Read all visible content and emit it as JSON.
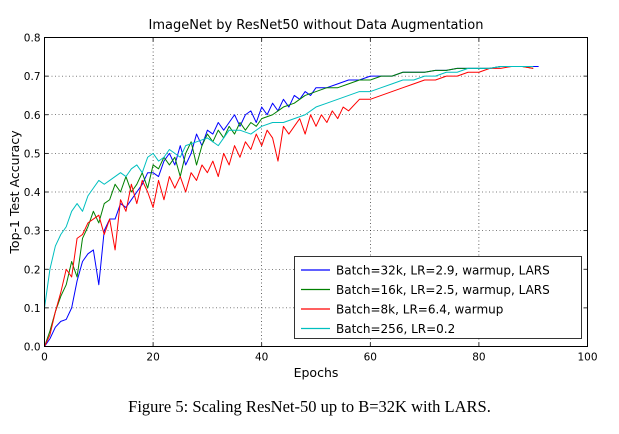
{
  "caption": "Figure 5: Scaling ResNet-50 up to B=32K with LARS.",
  "chart_data": {
    "type": "line",
    "title": "ImageNet by ResNet50 without Data Augmentation",
    "xlabel": "Epochs",
    "ylabel": "Top-1 Test Accuracy",
    "xlim": [
      0,
      100
    ],
    "ylim": [
      0.0,
      0.8
    ],
    "x_ticks": [
      "0",
      "20",
      "40",
      "60",
      "80",
      "100"
    ],
    "y_ticks": [
      "0.0",
      "0.1",
      "0.2",
      "0.3",
      "0.4",
      "0.5",
      "0.6",
      "0.7",
      "0.8"
    ],
    "grid": true,
    "legend_position": "lower-right",
    "series": [
      {
        "name": "Batch=32k, LR=2.9, warmup, LARS",
        "color": "#0000ff",
        "x": [
          0,
          1,
          2,
          3,
          4,
          5,
          6,
          7,
          8,
          9,
          10,
          11,
          12,
          13,
          14,
          15,
          16,
          17,
          18,
          19,
          20,
          21,
          22,
          23,
          24,
          25,
          26,
          27,
          28,
          29,
          30,
          31,
          32,
          33,
          34,
          35,
          36,
          37,
          38,
          39,
          40,
          41,
          42,
          43,
          44,
          45,
          46,
          47,
          48,
          49,
          50,
          52,
          54,
          56,
          58,
          60,
          62,
          64,
          66,
          68,
          70,
          72,
          74,
          76,
          78,
          80,
          82,
          84,
          86,
          88,
          90,
          91
        ],
        "y": [
          0.0,
          0.02,
          0.05,
          0.065,
          0.07,
          0.1,
          0.17,
          0.22,
          0.24,
          0.25,
          0.16,
          0.3,
          0.33,
          0.33,
          0.37,
          0.36,
          0.38,
          0.4,
          0.42,
          0.45,
          0.45,
          0.44,
          0.48,
          0.5,
          0.47,
          0.52,
          0.47,
          0.5,
          0.55,
          0.52,
          0.56,
          0.55,
          0.58,
          0.56,
          0.58,
          0.6,
          0.57,
          0.6,
          0.61,
          0.58,
          0.62,
          0.6,
          0.63,
          0.61,
          0.64,
          0.62,
          0.65,
          0.64,
          0.66,
          0.65,
          0.67,
          0.67,
          0.68,
          0.69,
          0.69,
          0.7,
          0.7,
          0.7,
          0.71,
          0.71,
          0.71,
          0.715,
          0.715,
          0.72,
          0.72,
          0.72,
          0.72,
          0.725,
          0.725,
          0.725,
          0.725,
          0.725
        ]
      },
      {
        "name": "Batch=16k, LR=2.5, warmup, LARS",
        "color": "#008000",
        "x": [
          0,
          1,
          2,
          3,
          4,
          5,
          6,
          7,
          8,
          9,
          10,
          11,
          12,
          13,
          14,
          15,
          16,
          17,
          18,
          19,
          20,
          21,
          22,
          23,
          24,
          25,
          26,
          27,
          28,
          29,
          30,
          31,
          32,
          33,
          34,
          35,
          36,
          37,
          38,
          39,
          40,
          42,
          44,
          46,
          48,
          50,
          52,
          54,
          56,
          58,
          60,
          62,
          64,
          66,
          68,
          70,
          72,
          74,
          76,
          78,
          80,
          82,
          84,
          86,
          88,
          90
        ],
        "y": [
          0.0,
          0.04,
          0.09,
          0.13,
          0.16,
          0.22,
          0.18,
          0.28,
          0.31,
          0.35,
          0.32,
          0.37,
          0.38,
          0.42,
          0.4,
          0.44,
          0.4,
          0.42,
          0.45,
          0.41,
          0.47,
          0.46,
          0.49,
          0.47,
          0.49,
          0.44,
          0.5,
          0.53,
          0.47,
          0.52,
          0.55,
          0.53,
          0.56,
          0.54,
          0.57,
          0.55,
          0.58,
          0.56,
          0.58,
          0.57,
          0.59,
          0.6,
          0.62,
          0.63,
          0.65,
          0.66,
          0.67,
          0.67,
          0.68,
          0.69,
          0.69,
          0.7,
          0.7,
          0.71,
          0.71,
          0.71,
          0.715,
          0.715,
          0.72,
          0.72,
          0.72,
          0.72,
          0.725,
          0.725,
          0.725,
          0.72
        ]
      },
      {
        "name": "Batch=8k, LR=6.4, warmup",
        "color": "#ff0000",
        "x": [
          0,
          1,
          2,
          3,
          4,
          5,
          6,
          7,
          8,
          9,
          10,
          11,
          12,
          13,
          14,
          15,
          16,
          17,
          18,
          19,
          20,
          21,
          22,
          23,
          24,
          25,
          26,
          27,
          28,
          29,
          30,
          31,
          32,
          33,
          34,
          35,
          36,
          37,
          38,
          39,
          40,
          41,
          42,
          43,
          44,
          45,
          46,
          47,
          48,
          49,
          50,
          51,
          52,
          53,
          54,
          55,
          56,
          58,
          60,
          62,
          64,
          66,
          68,
          70,
          72,
          74,
          76,
          78,
          80,
          82,
          84,
          86,
          88,
          90
        ],
        "y": [
          0.0,
          0.03,
          0.09,
          0.14,
          0.2,
          0.18,
          0.28,
          0.29,
          0.32,
          0.33,
          0.34,
          0.29,
          0.33,
          0.25,
          0.38,
          0.35,
          0.42,
          0.37,
          0.43,
          0.4,
          0.36,
          0.43,
          0.38,
          0.44,
          0.41,
          0.44,
          0.4,
          0.45,
          0.43,
          0.47,
          0.45,
          0.48,
          0.44,
          0.5,
          0.47,
          0.52,
          0.49,
          0.53,
          0.51,
          0.55,
          0.52,
          0.56,
          0.54,
          0.48,
          0.57,
          0.55,
          0.57,
          0.59,
          0.55,
          0.6,
          0.57,
          0.6,
          0.58,
          0.61,
          0.59,
          0.62,
          0.61,
          0.64,
          0.64,
          0.65,
          0.66,
          0.67,
          0.68,
          0.69,
          0.69,
          0.7,
          0.7,
          0.71,
          0.71,
          0.72,
          0.72,
          0.725,
          0.725,
          0.72
        ]
      },
      {
        "name": "Batch=256, LR=0.2",
        "color": "#00bfbf",
        "x": [
          0,
          1,
          2,
          3,
          4,
          5,
          6,
          7,
          8,
          9,
          10,
          11,
          12,
          13,
          14,
          15,
          16,
          17,
          18,
          19,
          20,
          21,
          22,
          23,
          24,
          25,
          26,
          28,
          30,
          32,
          34,
          36,
          38,
          40,
          42,
          44,
          46,
          48,
          50,
          52,
          54,
          56,
          58,
          60,
          62,
          64,
          66,
          68,
          70,
          72,
          74,
          76,
          78,
          80,
          82,
          84,
          86,
          88,
          90
        ],
        "y": [
          0.1,
          0.2,
          0.26,
          0.29,
          0.31,
          0.35,
          0.37,
          0.35,
          0.39,
          0.41,
          0.43,
          0.42,
          0.43,
          0.44,
          0.45,
          0.44,
          0.46,
          0.47,
          0.45,
          0.49,
          0.5,
          0.48,
          0.49,
          0.51,
          0.5,
          0.49,
          0.52,
          0.53,
          0.54,
          0.52,
          0.56,
          0.56,
          0.55,
          0.57,
          0.58,
          0.58,
          0.59,
          0.6,
          0.62,
          0.63,
          0.64,
          0.65,
          0.66,
          0.66,
          0.67,
          0.68,
          0.69,
          0.69,
          0.7,
          0.7,
          0.71,
          0.71,
          0.72,
          0.72,
          0.72,
          0.725,
          0.725,
          0.725,
          0.725
        ]
      }
    ]
  }
}
